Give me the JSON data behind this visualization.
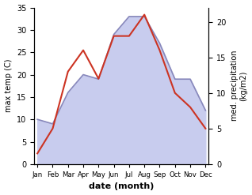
{
  "months": [
    "Jan",
    "Feb",
    "Mar",
    "Apr",
    "May",
    "Jun",
    "Jul",
    "Aug",
    "Sep",
    "Oct",
    "Nov",
    "Dec"
  ],
  "temperature": [
    10,
    9,
    16,
    20,
    19,
    29,
    33,
    33,
    27,
    19,
    19,
    12
  ],
  "precipitation": [
    1.5,
    5,
    13,
    16,
    12,
    18,
    18,
    21,
    16,
    10,
    8,
    5
  ],
  "temp_fill_color": "#c8ccee",
  "temp_line_color": "#8888bb",
  "precip_color": "#cc3322",
  "temp_ylim": [
    0,
    35
  ],
  "temp_yticks": [
    0,
    5,
    10,
    15,
    20,
    25,
    30,
    35
  ],
  "precip_ylim": [
    0,
    22
  ],
  "precip_yticks": [
    0,
    5,
    10,
    15,
    20
  ],
  "ylabel_left": "max temp (C)",
  "ylabel_right": "med. precipitation\n(kg/m2)",
  "xlabel": "date (month)",
  "bg_color": "#ffffff"
}
